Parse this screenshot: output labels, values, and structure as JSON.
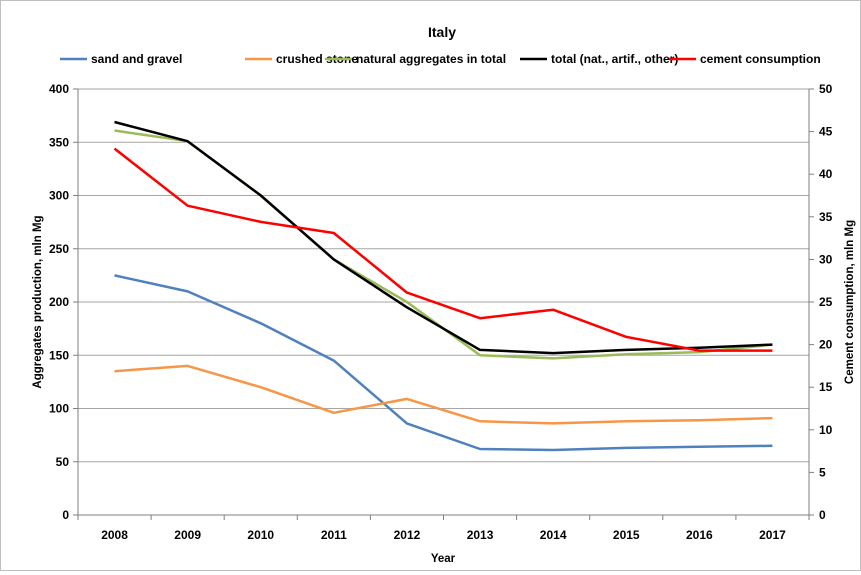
{
  "chart_data": {
    "type": "line",
    "title": "Italy",
    "xlabel": "Year",
    "ylabel": "Aggregates production, mln Mg",
    "y2label": "Cement consumption, mln Mg",
    "ylim": [
      0,
      400
    ],
    "y2lim": [
      0,
      50
    ],
    "yticks": [
      "0",
      "50",
      "100",
      "150",
      "200",
      "250",
      "300",
      "350",
      "400"
    ],
    "y2ticks": [
      "0",
      "5",
      "10",
      "15",
      "20",
      "25",
      "30",
      "35",
      "40",
      "45",
      "50"
    ],
    "categories": [
      "2008",
      "2009",
      "2010",
      "2011",
      "2012",
      "2013",
      "2014",
      "2015",
      "2016",
      "2017"
    ],
    "grid": "horizontal",
    "legend_position": "top",
    "series": [
      {
        "name": "sand and gravel",
        "color": "#4f81bd",
        "axis": "left",
        "values": [
          225,
          210,
          180,
          145,
          86,
          62,
          61,
          63,
          64,
          65
        ]
      },
      {
        "name": "crushed stone",
        "color": "#f79646",
        "axis": "left",
        "values": [
          135,
          140,
          120,
          96,
          109,
          88,
          86,
          88,
          89,
          91
        ]
      },
      {
        "name": "natural aggregates in total",
        "color": "#9bbb59",
        "axis": "left",
        "values": [
          361,
          351,
          null,
          null,
          200,
          150,
          147,
          151,
          153,
          null
        ]
      },
      {
        "name": "total (nat., artif., other)",
        "color": "#000000",
        "axis": "left",
        "values": [
          369,
          351,
          300,
          240,
          195,
          155,
          152,
          155,
          157,
          160
        ]
      },
      {
        "name": "cement consumption",
        "color": "#ff0000",
        "axis": "right",
        "values": [
          43,
          36.3,
          34.4,
          33.1,
          26.1,
          23.1,
          24.1,
          20.9,
          19.3,
          19.3
        ]
      }
    ]
  }
}
